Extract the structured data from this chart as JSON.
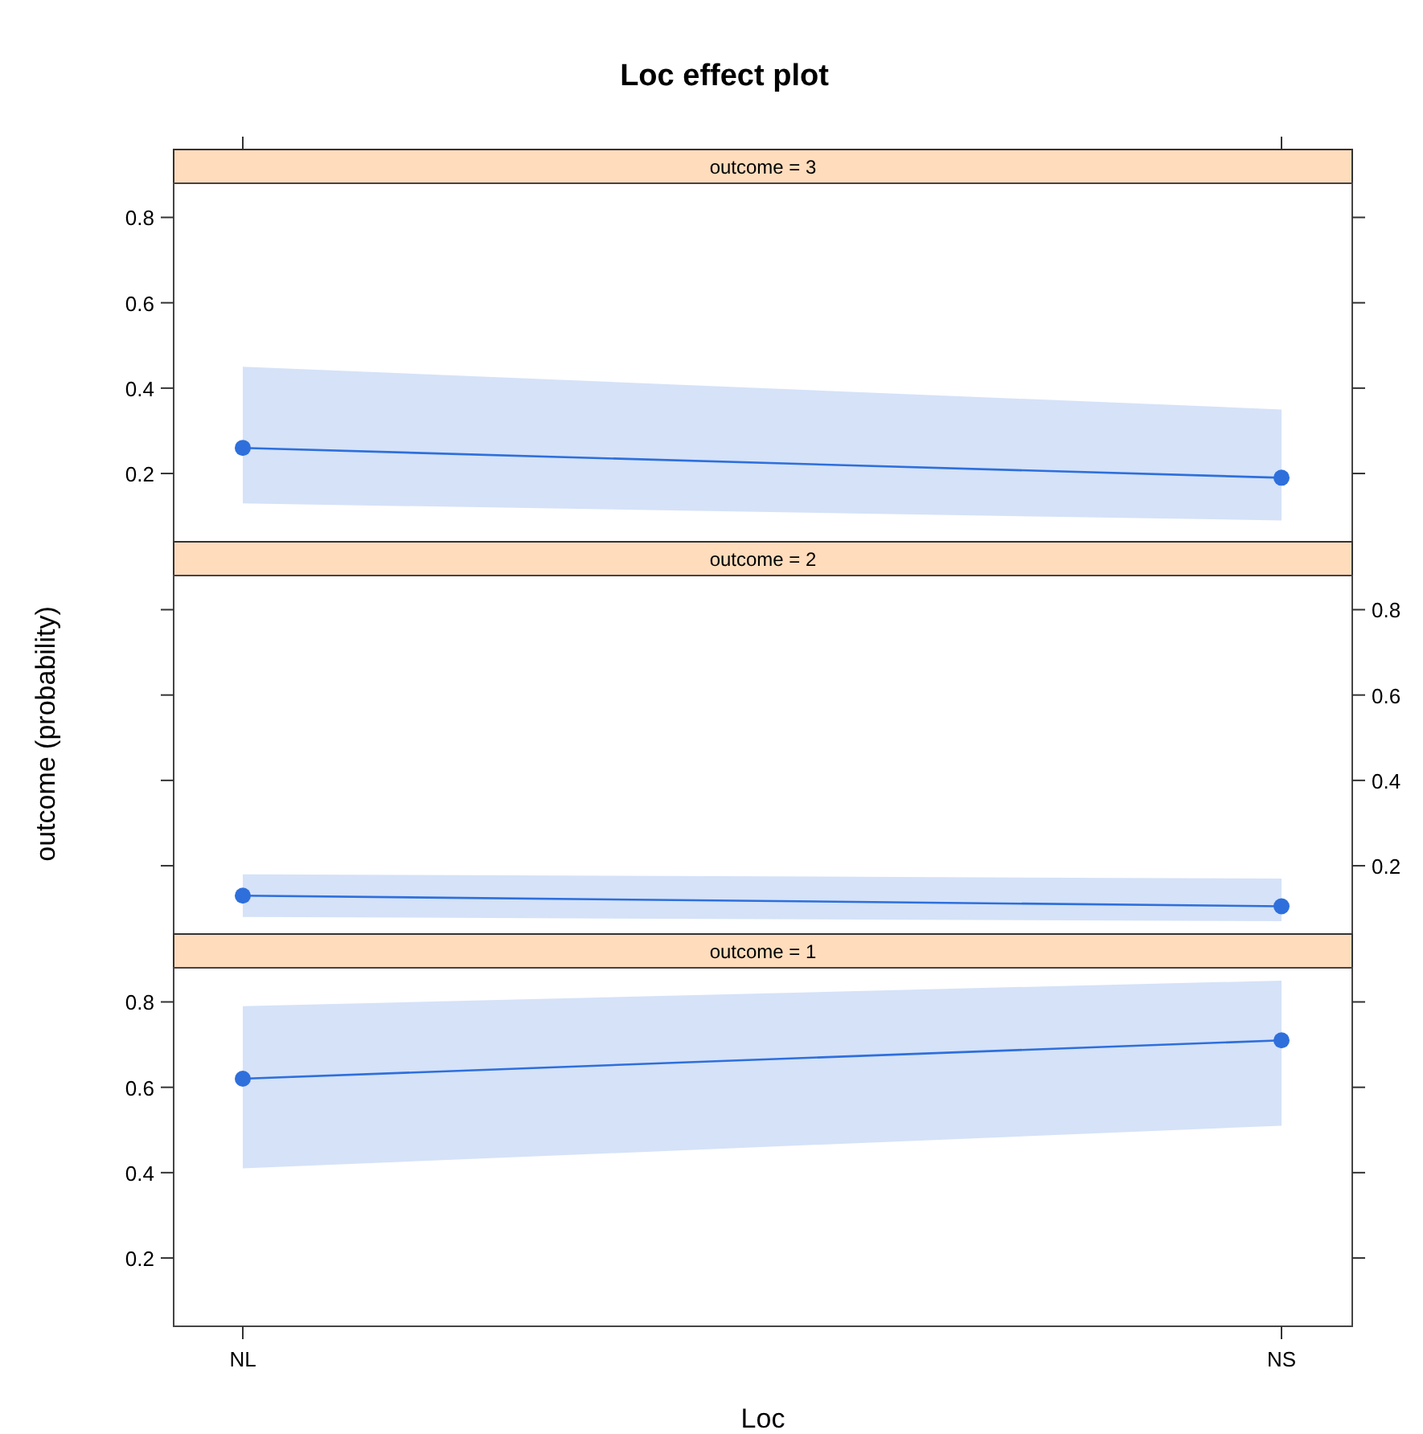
{
  "chart_data": [
    {
      "type": "line",
      "title": "Loc effect plot",
      "subtitle": "outcome = 3",
      "categories": [
        null,
        null
      ],
      "tick_labels": "y",
      "marker": "circle",
      "ylim": [
        0.04,
        0.88
      ],
      "yticks": [
        0.2,
        0.4,
        0.6,
        0.8
      ],
      "series": [
        {
          "color": "#2e6fdc",
          "values": [
            0.26,
            0.19
          ],
          "lower": [
            0.13,
            0.09
          ],
          "upper": [
            0.45,
            0.35
          ]
        }
      ]
    },
    {
      "type": "line",
      "subtitle": "outcome = 2",
      "ylabel": "outcome (probability)",
      "categories": [
        null,
        null
      ],
      "tick_labels": "y",
      "marker": "circle",
      "ylim": [
        0.04,
        0.88
      ],
      "yticks": [
        0.2,
        0.4,
        0.6,
        0.8
      ],
      "series": [
        {
          "color": "#2e6fdc",
          "values": [
            0.13,
            0.105
          ],
          "lower": [
            0.08,
            0.07
          ],
          "upper": [
            0.18,
            0.17
          ]
        }
      ]
    },
    {
      "type": "line",
      "subtitle": "outcome = 1",
      "xlabel": "Loc",
      "categories": [
        "NL",
        "NS"
      ],
      "marker": "circle",
      "ylim": [
        0.04,
        0.88
      ],
      "yticks": [
        0.2,
        0.4,
        0.6,
        0.8
      ],
      "series": [
        {
          "color": "#2e6fdc",
          "values": [
            0.62,
            0.71
          ],
          "lower": [
            0.41,
            0.51
          ],
          "upper": [
            0.79,
            0.85
          ]
        }
      ]
    }
  ]
}
